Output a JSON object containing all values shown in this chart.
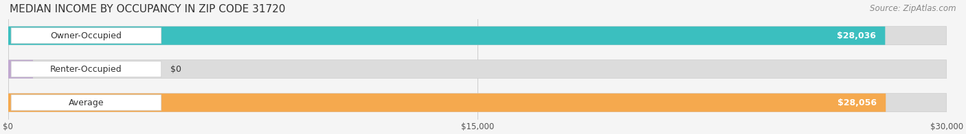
{
  "title": "MEDIAN INCOME BY OCCUPANCY IN ZIP CODE 31720",
  "source": "Source: ZipAtlas.com",
  "categories": [
    "Owner-Occupied",
    "Renter-Occupied",
    "Average"
  ],
  "values": [
    28036,
    0,
    28056
  ],
  "bar_colors": [
    "#3bbfbf",
    "#c0a8d0",
    "#f5a94e"
  ],
  "bar_bg_color": "#e8e8e8",
  "label_color": "#333333",
  "value_labels": [
    "$28,036",
    "$0",
    "$28,056"
  ],
  "xlim": [
    0,
    30000
  ],
  "xticks": [
    0,
    15000,
    30000
  ],
  "xticklabels": [
    "$0",
    "$15,000",
    "$30,000"
  ],
  "title_fontsize": 11,
  "source_fontsize": 8.5,
  "bar_label_fontsize": 9,
  "value_label_fontsize": 9,
  "background_color": "#f5f5f5",
  "bar_bg_alpha": 1.0,
  "figsize": [
    14.06,
    1.96
  ],
  "dpi": 100
}
